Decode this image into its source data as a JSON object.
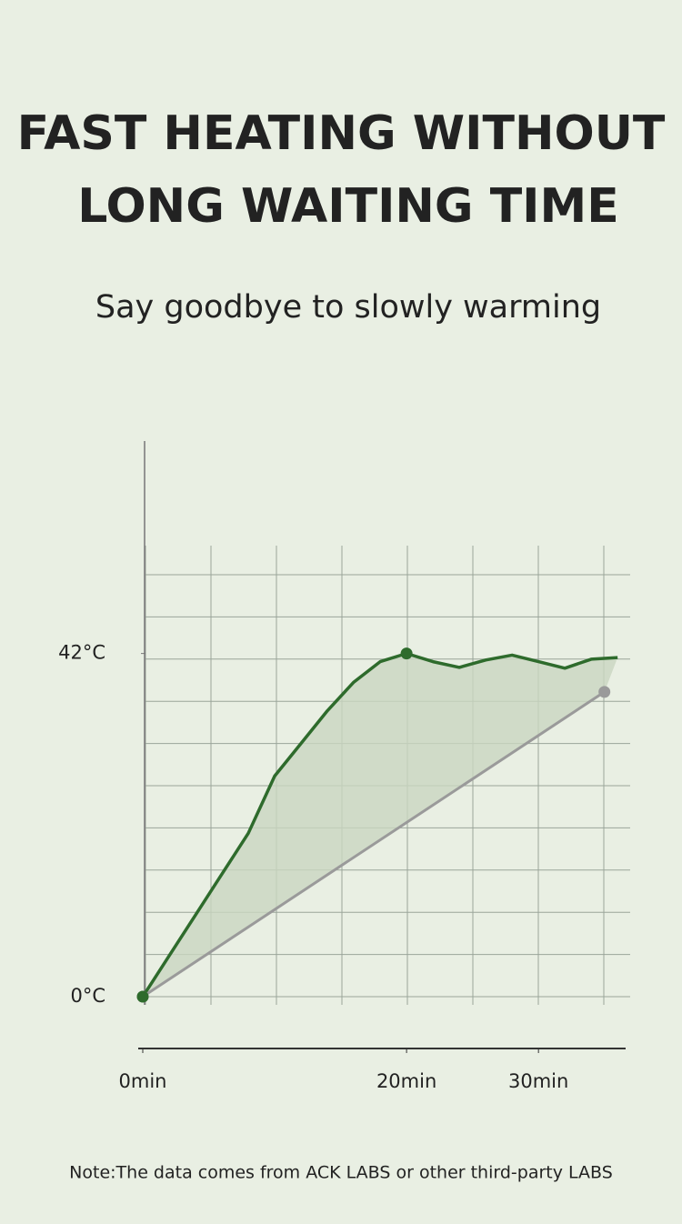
{
  "chart_data": {
    "type": "line",
    "title": [
      "FAST HEATING WITHOUT",
      "LONG WAITING TIME"
    ],
    "subtitle": "Say goodbye to slowly warming",
    "note": "Note:The data comes from ACK LABS or other third-party LABS",
    "xlim": [
      0,
      36.4
    ],
    "ylim": [
      -1,
      68
    ],
    "xticks": [
      {
        "value": 0,
        "label": "0min"
      },
      {
        "value": 20,
        "label": "20min"
      },
      {
        "value": 30,
        "label": "30min"
      }
    ],
    "yticks": [
      {
        "value": 0,
        "label": "0°C"
      },
      {
        "value": 42,
        "label": "42°C"
      }
    ],
    "grid": true,
    "series": [
      {
        "color": "#2e6b2c",
        "x": [
          0,
          2,
          4,
          6,
          8,
          10,
          12,
          14,
          16,
          18,
          20,
          22,
          24,
          26,
          28,
          30,
          32,
          34,
          36
        ],
        "values": [
          0,
          5,
          10,
          15,
          20,
          27,
          31,
          35,
          38.5,
          41,
          42,
          41,
          40.3,
          41.2,
          41.8,
          41,
          40.2,
          41.3,
          41.5
        ]
      },
      {
        "color": "#9a9a9a",
        "x": [
          0,
          35
        ],
        "values": [
          0,
          37.3
        ]
      }
    ],
    "fill_color": "#c9d6c0"
  }
}
